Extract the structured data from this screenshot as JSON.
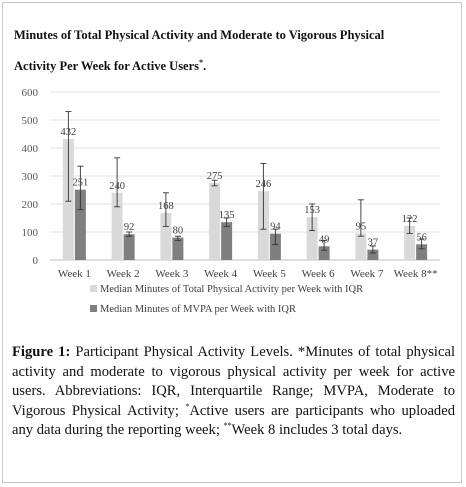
{
  "chart_data": {
    "type": "bar",
    "title_line1": "Minutes of Total Physical Activity and Moderate to Vigorous Physical",
    "title_line2": "Activity Per Week for Active Users",
    "title_sup": "*",
    "title_end": ".",
    "categories": [
      "Week 1",
      "Week 2",
      "Week 3",
      "Week 4",
      "Week 5",
      "Week 6",
      "Week 7",
      "Week 8**"
    ],
    "ylim": [
      0,
      600
    ],
    "yticks": [
      0,
      100,
      200,
      300,
      400,
      500,
      600
    ],
    "grid": true,
    "legend_position": "bottom",
    "series": [
      {
        "name": "Median Minutes of Total Physical Activity per Week with IQR",
        "color": "#d9d9d9",
        "values": [
          432,
          240,
          168,
          275,
          246,
          153,
          95,
          122
        ],
        "err_low": [
          210,
          190,
          120,
          265,
          110,
          105,
          85,
          95
        ],
        "err_high": [
          530,
          365,
          240,
          285,
          345,
          200,
          215,
          150
        ]
      },
      {
        "name": "Median Minutes of MVPA per Week with IQR",
        "color": "#7f7f7f",
        "values": [
          251,
          92,
          80,
          135,
          94,
          49,
          37,
          56
        ],
        "err_low": [
          180,
          85,
          70,
          120,
          55,
          35,
          25,
          40
        ],
        "err_high": [
          335,
          100,
          85,
          150,
          110,
          70,
          50,
          75
        ]
      }
    ]
  },
  "caption": {
    "label": "Figure 1:",
    "p1": " Participant Physical Activity Levels. *Minutes of total physical activity and moderate to vigorous physical activity per week for active users. Abbreviations: IQR, Interquartile Range; MVPA, Moderate to Vigorous Physical Activity; ",
    "sup1": "*",
    "p2": "Active users are participants who uploaded any data during the reporting week; ",
    "sup2": "**",
    "p3": "Week 8 includes 3 total days."
  }
}
